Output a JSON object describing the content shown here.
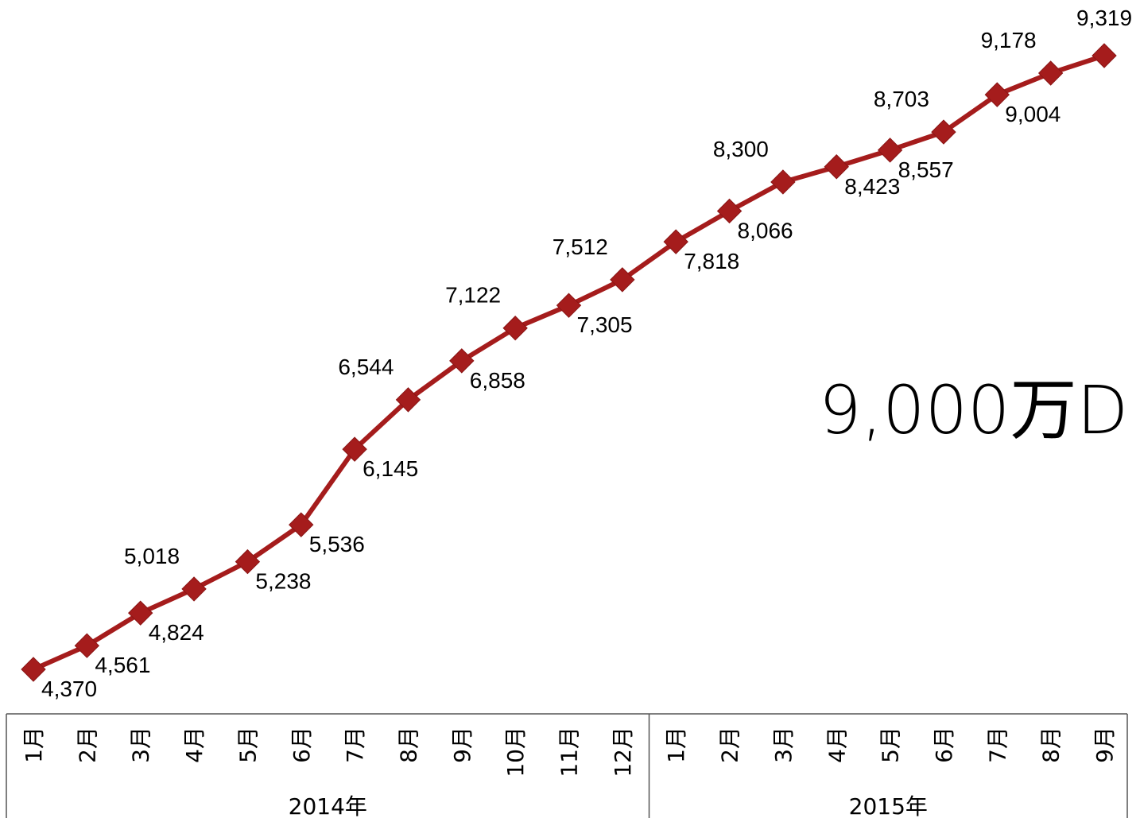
{
  "chart_data": {
    "type": "line",
    "series": [
      {
        "values": [
          4370,
          4561,
          4824,
          5018,
          5238,
          5536,
          6145,
          6544,
          6858,
          7122,
          7305,
          7512,
          7818,
          8066,
          8300,
          8423,
          8557,
          8703,
          9004,
          9178,
          9319
        ]
      }
    ],
    "data_labels": [
      "4,370",
      "4,561",
      "4,824",
      "5,018",
      "5,238",
      "5,536",
      "6,145",
      "6,544",
      "6,858",
      "7,122",
      "7,305",
      "7,512",
      "7,818",
      "8,066",
      "8,300",
      "8,423",
      "8,557",
      "8,703",
      "9,004",
      "9,178",
      "9,319"
    ],
    "categories": [
      "1月",
      "2月",
      "3月",
      "4月",
      "5月",
      "6月",
      "7月",
      "8月",
      "9月",
      "10月",
      "11月",
      "12月",
      "1月",
      "2月",
      "3月",
      "4月",
      "5月",
      "6月",
      "7月",
      "8月",
      "9月"
    ],
    "groups": [
      {
        "label": "2014年",
        "count": 12
      },
      {
        "label": "2015年",
        "count": 9
      }
    ],
    "annotation": "9,000万D",
    "line_color": "#a51c1c",
    "grid": false,
    "legend": "none"
  }
}
